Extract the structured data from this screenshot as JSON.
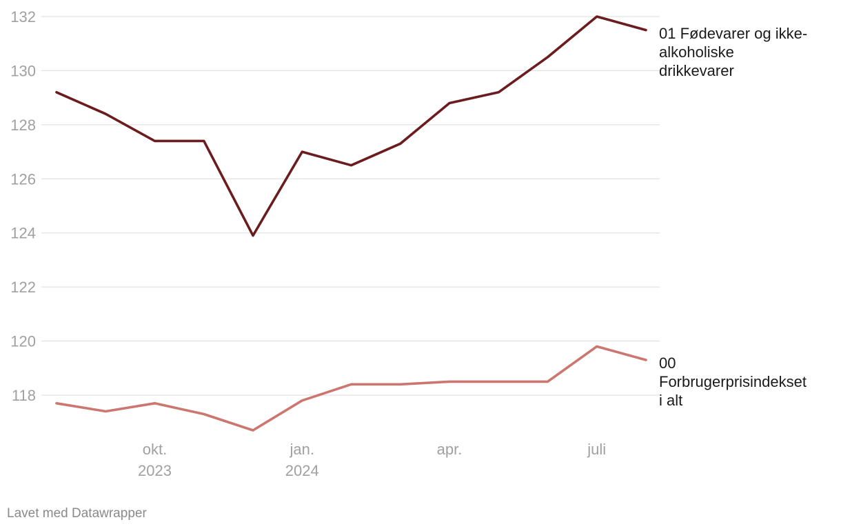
{
  "chart_data": {
    "type": "line",
    "x": [
      "2023-08",
      "2023-09",
      "2023-10",
      "2023-11",
      "2023-12",
      "2024-01",
      "2024-02",
      "2024-03",
      "2024-04",
      "2024-05",
      "2024-06",
      "2024-07",
      "2024-08"
    ],
    "x_tick_labels": [
      {
        "month_index": 2,
        "lines": [
          "okt.",
          "2023"
        ]
      },
      {
        "month_index": 5,
        "lines": [
          "jan.",
          "2024"
        ]
      },
      {
        "month_index": 8,
        "lines": [
          "apr."
        ]
      },
      {
        "month_index": 11,
        "lines": [
          "juli"
        ]
      }
    ],
    "y_ticks": [
      118,
      120,
      122,
      124,
      126,
      128,
      130,
      132
    ],
    "ylim": [
      117,
      132
    ],
    "grid": true,
    "legend": "direct labels at line ends (right)",
    "series": [
      {
        "name": "01 Fødevarer og ikke-alkoholiske drikkevarer",
        "label_lines": [
          "01 Fødevarer og ikke-",
          "alkoholiske",
          "drikkevarer"
        ],
        "color": "#6b1c1f",
        "values": [
          129.2,
          128.4,
          127.4,
          127.4,
          123.9,
          127.0,
          126.5,
          127.3,
          128.8,
          129.2,
          130.5,
          132.0,
          131.5
        ]
      },
      {
        "name": "00 Forbrugerprisindekset i alt",
        "label_lines": [
          "00",
          "Forbrugerprisindekset",
          "i alt"
        ],
        "color": "#cc7670",
        "values": [
          117.7,
          117.4,
          117.7,
          117.3,
          116.7,
          117.8,
          118.4,
          118.4,
          118.5,
          118.5,
          118.5,
          119.8,
          119.3
        ]
      }
    ]
  },
  "footer": {
    "credit": "Lavet med Datawrapper"
  }
}
